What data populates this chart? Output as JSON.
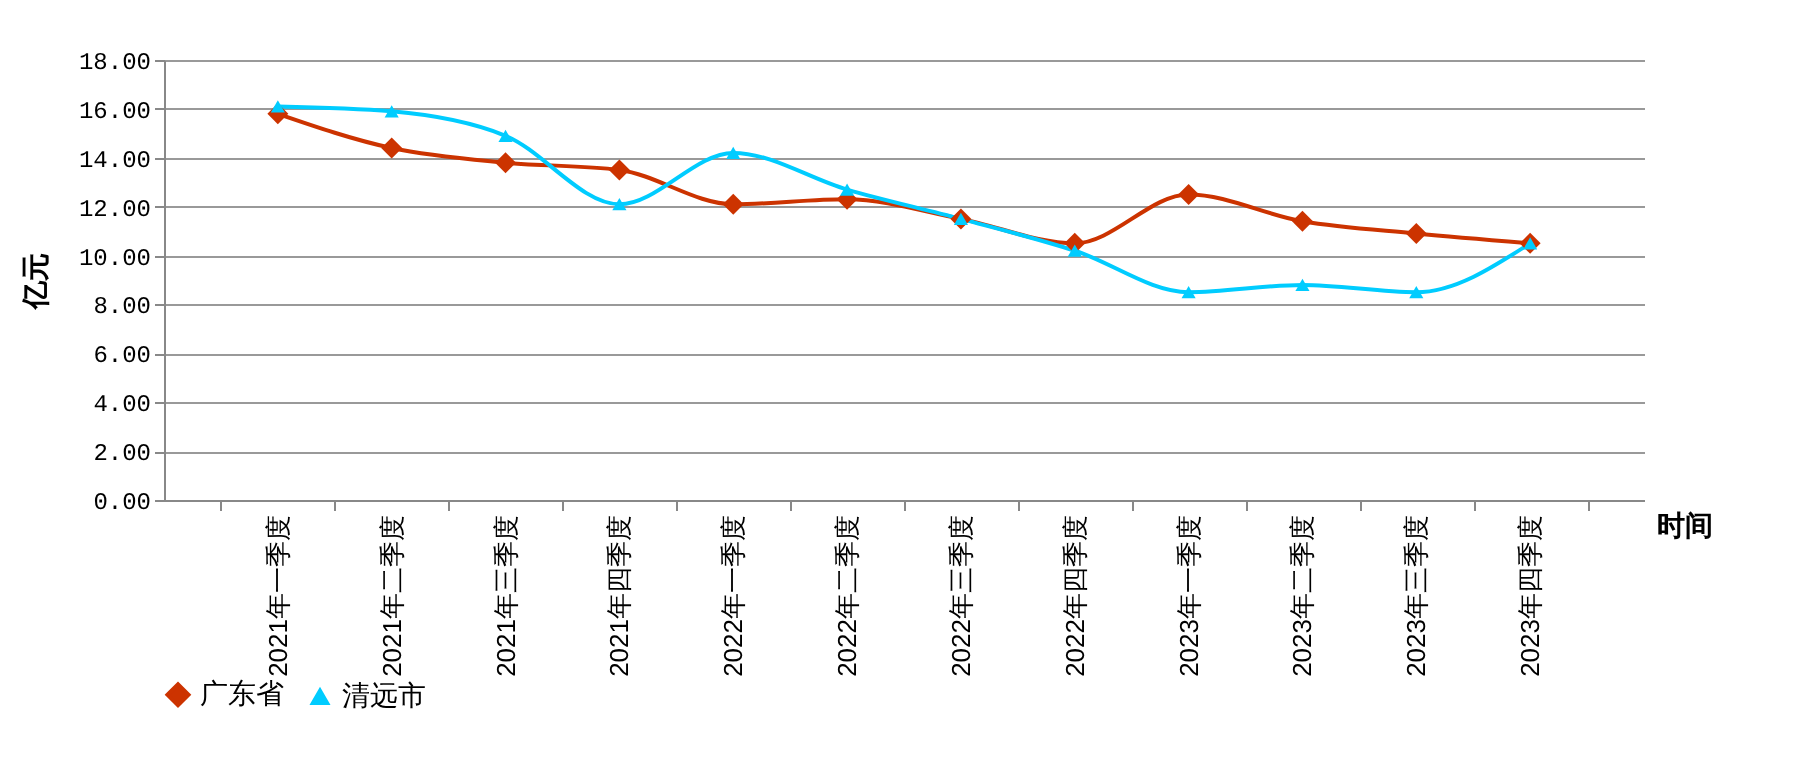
{
  "chart_data": {
    "type": "line",
    "xlabel": "时间",
    "ylabel": "亿元",
    "categories": [
      "2021年一季度",
      "2021年二季度",
      "2021年三季度",
      "2021年四季度",
      "2022年一季度",
      "2022年二季度",
      "2022年三季度",
      "2022年四季度",
      "2023年一季度",
      "2023年二季度",
      "2023年三季度",
      "2023年四季度"
    ],
    "series": [
      {
        "name": "广东省",
        "color": "#cc3300",
        "marker": "diamond",
        "values": [
          15.8,
          14.4,
          13.8,
          13.5,
          12.1,
          12.3,
          11.5,
          10.5,
          12.5,
          11.4,
          10.9,
          10.5
        ]
      },
      {
        "name": "清远市",
        "color": "#00ccff",
        "marker": "triangle",
        "values": [
          16.1,
          15.9,
          14.9,
          12.1,
          14.2,
          12.7,
          11.5,
          10.2,
          8.5,
          8.8,
          8.5,
          10.5
        ]
      }
    ],
    "ylim": [
      0,
      18
    ],
    "yticks": [
      {
        "value": 0,
        "label": "0.00"
      },
      {
        "value": 2,
        "label": "2.00"
      },
      {
        "value": 4,
        "label": "4.00"
      },
      {
        "value": 6,
        "label": "6.00"
      },
      {
        "value": 8,
        "label": "8.00"
      },
      {
        "value": 10,
        "label": "10.00"
      },
      {
        "value": 12,
        "label": "12.00"
      },
      {
        "value": 14,
        "label": "14.00"
      },
      {
        "value": 16,
        "label": "16.00"
      },
      {
        "value": 18,
        "label": "18.00"
      }
    ],
    "grid": "y",
    "legend": "bottom",
    "line_style": "solid"
  }
}
